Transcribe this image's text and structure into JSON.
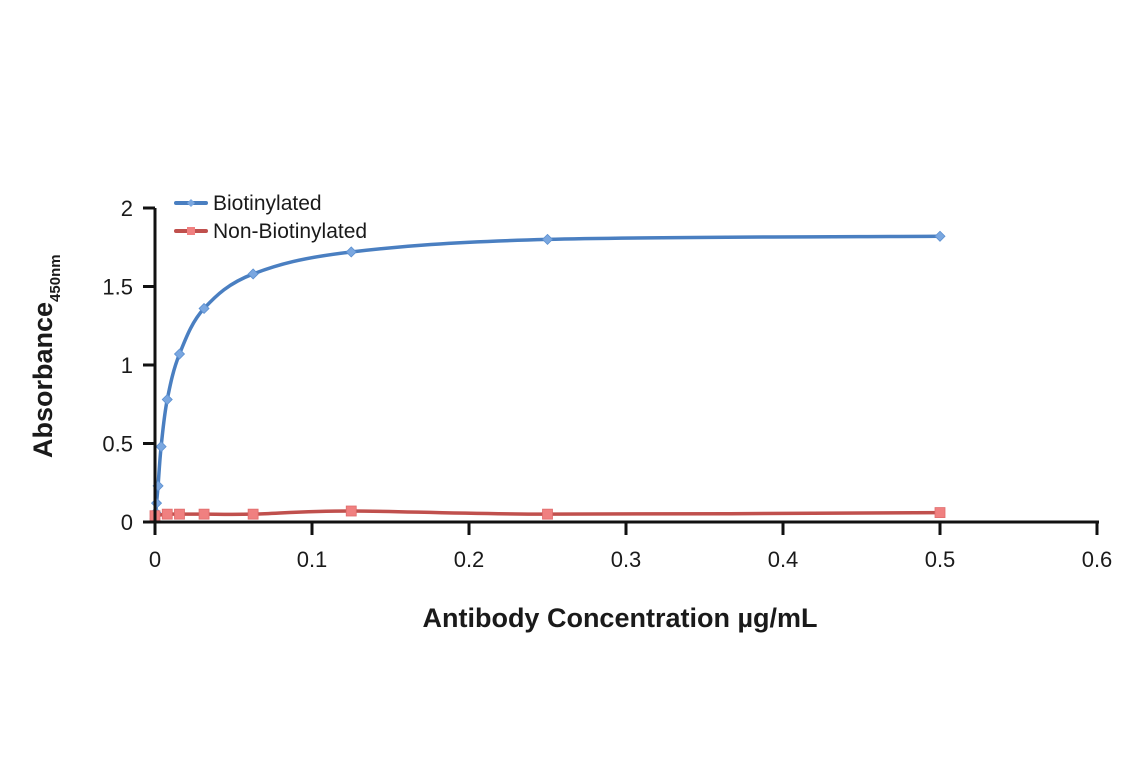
{
  "chart_data": {
    "type": "line",
    "title": "",
    "xlabel": "Antibody Concentration µg/mL",
    "ylabel": "Absorbance",
    "ylabel_subscript": "450nm",
    "xlim": [
      0,
      0.6
    ],
    "ylim": [
      0,
      2
    ],
    "xticks": [
      "0",
      "0.1",
      "0.2",
      "0.3",
      "0.4",
      "0.5",
      "0.6"
    ],
    "yticks": [
      "0",
      "0.5",
      "1",
      "1.5",
      "2"
    ],
    "grid": false,
    "legend_position": "top-left",
    "series": [
      {
        "name": "Biotinylated",
        "color": "#4a7fc1",
        "marker": "diamond",
        "marker_color": "#7aa7e0",
        "x": [
          0,
          0.00049,
          0.00098,
          0.00195,
          0.0039,
          0.0078,
          0.0156,
          0.03125,
          0.0625,
          0.125,
          0.25,
          0.5
        ],
        "y": [
          0.02,
          0.06,
          0.12,
          0.23,
          0.48,
          0.78,
          1.07,
          1.36,
          1.58,
          1.72,
          1.8,
          1.82
        ]
      },
      {
        "name": "Non-Biotinylated",
        "color": "#c0504d",
        "marker": "square",
        "marker_color": "#f08080",
        "x": [
          0,
          0.0078,
          0.0156,
          0.03125,
          0.0625,
          0.125,
          0.25,
          0.5
        ],
        "y": [
          0.04,
          0.05,
          0.05,
          0.05,
          0.05,
          0.07,
          0.05,
          0.06
        ]
      }
    ]
  },
  "legend": {
    "items": [
      {
        "label": "Biotinylated"
      },
      {
        "label": "Non-Biotinylated"
      }
    ]
  },
  "axes": {
    "x_title": "Antibody Concentration µg/mL",
    "y_title": "Absorbance",
    "y_title_sub": "450nm"
  }
}
